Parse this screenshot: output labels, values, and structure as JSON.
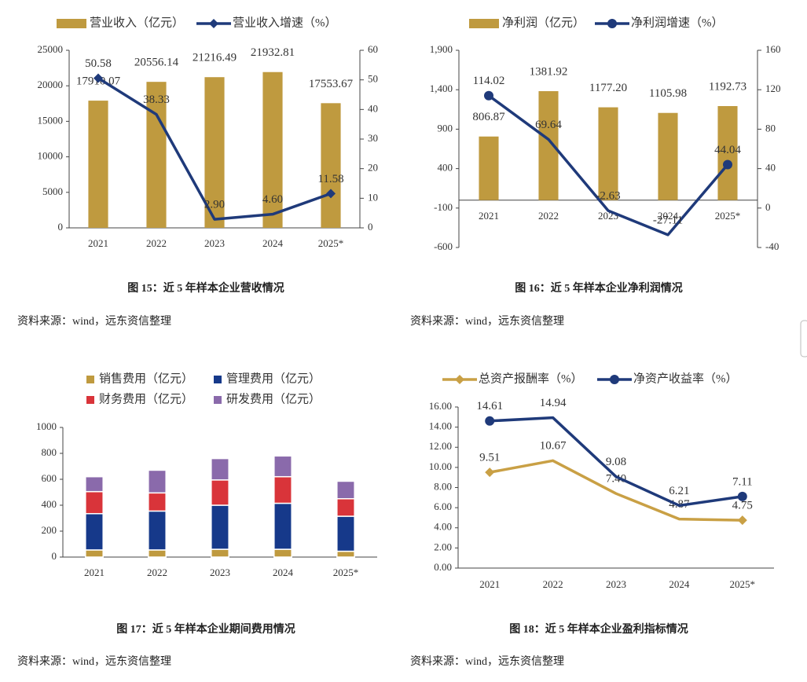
{
  "chart_data": [
    {
      "type": "bar_line",
      "caption": "图 15：近 5 年样本企业营收情况",
      "source": "资料来源：wind，远东资信整理",
      "categories": [
        "2021",
        "2022",
        "2023",
        "2024",
        "2025*"
      ],
      "series": [
        {
          "name": "营业收入（亿元）",
          "type": "bar",
          "color": "#bf9a3f",
          "values": [
            17910.07,
            20556.14,
            21216.49,
            21932.81,
            17553.67
          ],
          "value_labels": [
            "17910.07",
            "20556.14",
            "21216.49",
            "21932.81",
            "17553.67"
          ]
        },
        {
          "name": "营业收入增速（%）",
          "type": "line",
          "axis": "y2",
          "marker": "diamond",
          "color": "#1f3a7a",
          "values": [
            50.58,
            38.33,
            2.9,
            4.6,
            11.58
          ],
          "value_labels": [
            "50.58",
            "38.33",
            "2.90",
            "4.60",
            "11.58"
          ]
        }
      ],
      "ylim": [
        0,
        25000
      ],
      "yticks": [
        0,
        5000,
        10000,
        15000,
        20000,
        25000
      ],
      "y2lim": [
        0,
        60
      ],
      "y2ticks": [
        0,
        10,
        20,
        30,
        40,
        50,
        60
      ]
    },
    {
      "type": "bar_line",
      "caption": "图 16：近 5 年样本企业净利润情况",
      "source": "资料来源：wind，远东资信整理",
      "categories": [
        "2021",
        "2022",
        "2023",
        "2024",
        "2025*"
      ],
      "series": [
        {
          "name": "净利润（亿元）",
          "type": "bar",
          "color": "#bf9a3f",
          "values": [
            806.87,
            1381.92,
            1177.2,
            1105.98,
            1192.73
          ],
          "value_labels": [
            "806.87",
            "1381.92",
            "1177.20",
            "1105.98",
            "1192.73"
          ]
        },
        {
          "name": "净利润增速（%）",
          "type": "line",
          "axis": "y2",
          "marker": "circle",
          "color": "#1f3a7a",
          "values": [
            114.02,
            69.64,
            -2.63,
            -27.11,
            44.04
          ],
          "value_labels": [
            "114.02",
            "69.64",
            "-2.63",
            "-27.11",
            "44.04"
          ]
        }
      ],
      "ylim": [
        -600,
        1900
      ],
      "yticks": [
        -600,
        -100,
        400,
        900,
        {
          "value": 1400,
          "label": "1,400"
        },
        {
          "value": 1900,
          "label": "1,900"
        }
      ],
      "y2lim": [
        -40,
        160
      ],
      "y2ticks": [
        -40,
        0,
        40,
        80,
        120,
        160
      ]
    },
    {
      "type": "stacked_bar",
      "caption": "图 17：近 5 年样本企业期间费用情况",
      "source": "资料来源：wind，远东资信整理",
      "categories": [
        "2021",
        "2022",
        "2023",
        "2024",
        "2025*"
      ],
      "series": [
        {
          "name": "销售费用（亿元）",
          "color": "#bf9a3f",
          "values": [
            55,
            55,
            60,
            60,
            45
          ]
        },
        {
          "name": "管理费用（亿元）",
          "color": "#16398a",
          "values": [
            280,
            300,
            340,
            355,
            270
          ]
        },
        {
          "name": "财务费用（亿元）",
          "color": "#d9343a",
          "values": [
            170,
            140,
            195,
            205,
            135
          ]
        },
        {
          "name": "研发费用（亿元）",
          "color": "#8a6aab",
          "values": [
            115,
            175,
            165,
            160,
            135
          ]
        }
      ],
      "ylim": [
        0,
        1000
      ],
      "yticks": [
        0,
        200,
        400,
        600,
        800,
        1000
      ]
    },
    {
      "type": "line",
      "caption": "图 18：近 5 年样本企业盈利指标情况",
      "source": "资料来源：wind，远东资信整理",
      "categories": [
        "2021",
        "2022",
        "2023",
        "2024",
        "2025*"
      ],
      "series": [
        {
          "name": "总资产报酬率（%）",
          "marker": "diamond",
          "color": "#c9a045",
          "values": [
            9.51,
            10.67,
            7.4,
            4.87,
            4.75
          ],
          "value_labels": [
            "9.51",
            "10.67",
            "7.40",
            "4.87",
            "4.75"
          ]
        },
        {
          "name": "净资产收益率（%）",
          "marker": "circle",
          "color": "#1f3a7a",
          "values": [
            14.61,
            14.94,
            9.08,
            6.21,
            7.11
          ],
          "value_labels": [
            "14.61",
            "14.94",
            "9.08",
            "6.21",
            "7.11"
          ]
        }
      ],
      "ylim": [
        0,
        16
      ],
      "yticks": [
        {
          "value": 0,
          "label": "0.00"
        },
        {
          "value": 2,
          "label": "2.00"
        },
        {
          "value": 4,
          "label": "4.00"
        },
        {
          "value": 6,
          "label": "6.00"
        },
        {
          "value": 8,
          "label": "8.00"
        },
        {
          "value": 10,
          "label": "10.00"
        },
        {
          "value": 12,
          "label": "12.00"
        },
        {
          "value": 14,
          "label": "14.00"
        },
        {
          "value": 16,
          "label": "16.00"
        }
      ]
    }
  ]
}
